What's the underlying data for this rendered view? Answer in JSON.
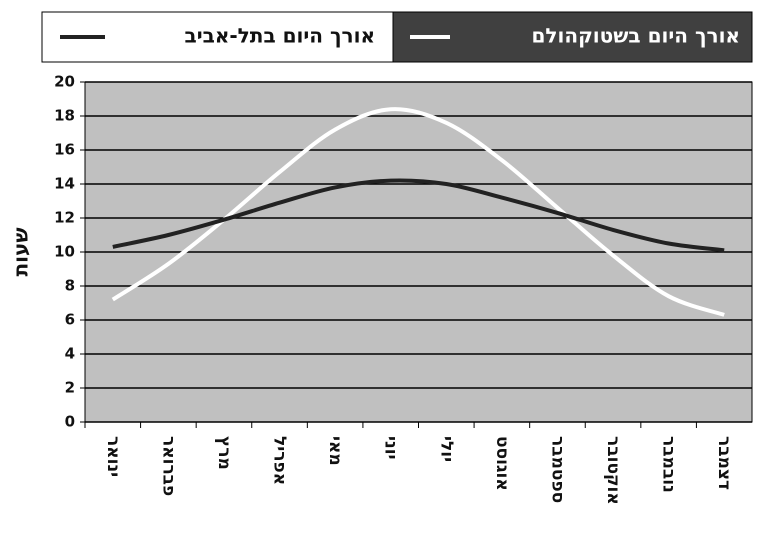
{
  "chart_data": {
    "type": "line",
    "y_label": "שעות",
    "categories": [
      "ינואר",
      "פברואר",
      "מרץ",
      "אפריל",
      "מאי",
      "יוני",
      "יולי",
      "אוגוסט",
      "ספטמבר",
      "אוקטובר",
      "נובמבר",
      "דצמבר"
    ],
    "series": [
      {
        "name": "אורך היום בשטוקהולם",
        "color": "#ffffff",
        "values": [
          7.2,
          9.3,
          11.9,
          14.7,
          17.2,
          18.4,
          17.6,
          15.4,
          12.6,
          9.8,
          7.4,
          6.3
        ]
      },
      {
        "name": "אורך היום בתל-אביב",
        "color": "#222222",
        "values": [
          10.3,
          11.0,
          11.9,
          12.9,
          13.8,
          14.2,
          14.0,
          13.2,
          12.3,
          11.3,
          10.5,
          10.1
        ]
      }
    ],
    "ylim": [
      0,
      20
    ],
    "yticks": [
      0,
      2,
      4,
      6,
      8,
      10,
      12,
      14,
      16,
      18,
      20
    ],
    "grid": true,
    "legend": "top"
  }
}
